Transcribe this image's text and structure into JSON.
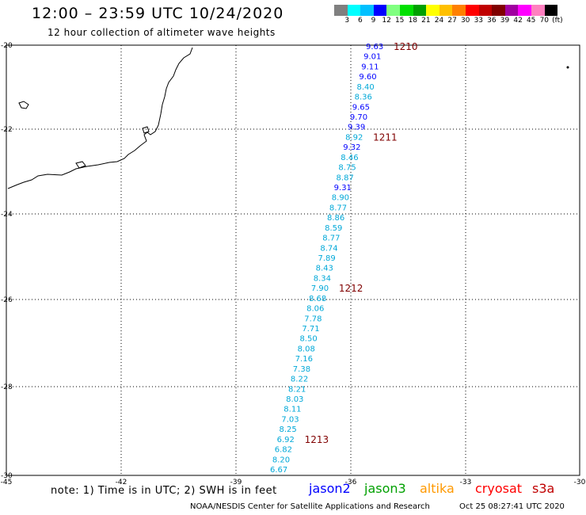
{
  "header": {
    "title": "12:00 – 23:59 UTC 10/24/2020",
    "subtitle": "12 hour collection of altimeter wave heights"
  },
  "legend": {
    "unit": "(ft)",
    "labels": [
      "3",
      "6",
      "9",
      "12",
      "15",
      "18",
      "21",
      "24",
      "27",
      "30",
      "33",
      "36",
      "39",
      "42",
      "45",
      "70"
    ],
    "colors": [
      "#808080",
      "#00ffff",
      "#00c0ff",
      "#0000ff",
      "#80ff80",
      "#00e000",
      "#00a000",
      "#ffff00",
      "#ffc000",
      "#ff8000",
      "#ff0000",
      "#c00000",
      "#800000",
      "#a000a0",
      "#ff00ff",
      "#ff80c0",
      "#000000"
    ]
  },
  "axes": {
    "lon_labels": [
      "-45",
      "-42",
      "-39",
      "-36",
      "-33",
      "-30"
    ],
    "lat_labels": [
      "-20",
      "-22",
      "-24",
      "-26",
      "-28",
      "-30"
    ]
  },
  "track": {
    "color_light": "#00a8d8",
    "color_dark": "#0000ff",
    "time_color": "#800000",
    "points": [
      {
        "v": "9.63",
        "c": "dark"
      },
      {
        "v": "9.01",
        "c": "dark"
      },
      {
        "v": "9.11",
        "c": "dark"
      },
      {
        "v": "9.60",
        "c": "dark"
      },
      {
        "v": "8.40",
        "c": "light"
      },
      {
        "v": "8.36",
        "c": "light"
      },
      {
        "v": "9.65",
        "c": "dark"
      },
      {
        "v": "9.70",
        "c": "dark"
      },
      {
        "v": "9.39",
        "c": "dark"
      },
      {
        "v": "8.92",
        "c": "light"
      },
      {
        "v": "9.32",
        "c": "dark"
      },
      {
        "v": "8.46",
        "c": "light"
      },
      {
        "v": "8.75",
        "c": "light"
      },
      {
        "v": "8.87",
        "c": "light"
      },
      {
        "v": "9.31",
        "c": "dark"
      },
      {
        "v": "8.90",
        "c": "light"
      },
      {
        "v": "8.77",
        "c": "light"
      },
      {
        "v": "8.86",
        "c": "light"
      },
      {
        "v": "8.59",
        "c": "light"
      },
      {
        "v": "8.77",
        "c": "light"
      },
      {
        "v": "8.74",
        "c": "light"
      },
      {
        "v": "7.89",
        "c": "light"
      },
      {
        "v": "8.43",
        "c": "light"
      },
      {
        "v": "8.34",
        "c": "light"
      },
      {
        "v": "7.90",
        "c": "light"
      },
      {
        "v": "8.68",
        "c": "light"
      },
      {
        "v": "8.06",
        "c": "light"
      },
      {
        "v": "7.78",
        "c": "light"
      },
      {
        "v": "7.71",
        "c": "light"
      },
      {
        "v": "8.50",
        "c": "light"
      },
      {
        "v": "8.08",
        "c": "light"
      },
      {
        "v": "7.16",
        "c": "light"
      },
      {
        "v": "7.38",
        "c": "light"
      },
      {
        "v": "8.22",
        "c": "light"
      },
      {
        "v": "8.21",
        "c": "light"
      },
      {
        "v": "8.03",
        "c": "light"
      },
      {
        "v": "8.11",
        "c": "light"
      },
      {
        "v": "7.03",
        "c": "light"
      },
      {
        "v": "8.25",
        "c": "light"
      },
      {
        "v": "6.92",
        "c": "light"
      },
      {
        "v": "6.82",
        "c": "light"
      },
      {
        "v": "8.20",
        "c": "light"
      },
      {
        "v": "6.67",
        "c": "light"
      }
    ],
    "times": [
      {
        "label": "1210",
        "index": 0
      },
      {
        "label": "1211",
        "index": 9
      },
      {
        "label": "1212",
        "index": 24
      },
      {
        "label": "1213",
        "index": 39
      }
    ]
  },
  "notes": {
    "note": "note:  1) Time is in UTC;  2) SWH is in feet",
    "satellites": [
      {
        "name": "jason2",
        "color": "#0000ff"
      },
      {
        "name": "jason3",
        "color": "#00a000"
      },
      {
        "name": "altika",
        "color": "#ff9900"
      },
      {
        "name": "cryosat",
        "color": "#ff0000"
      },
      {
        "name": "s3a",
        "color": "#c00000"
      }
    ],
    "footer_left": "NOAA/NESDIS Center for Satellite Applications and Research",
    "footer_right": "Oct 25 08:27:41 UTC 2020"
  }
}
